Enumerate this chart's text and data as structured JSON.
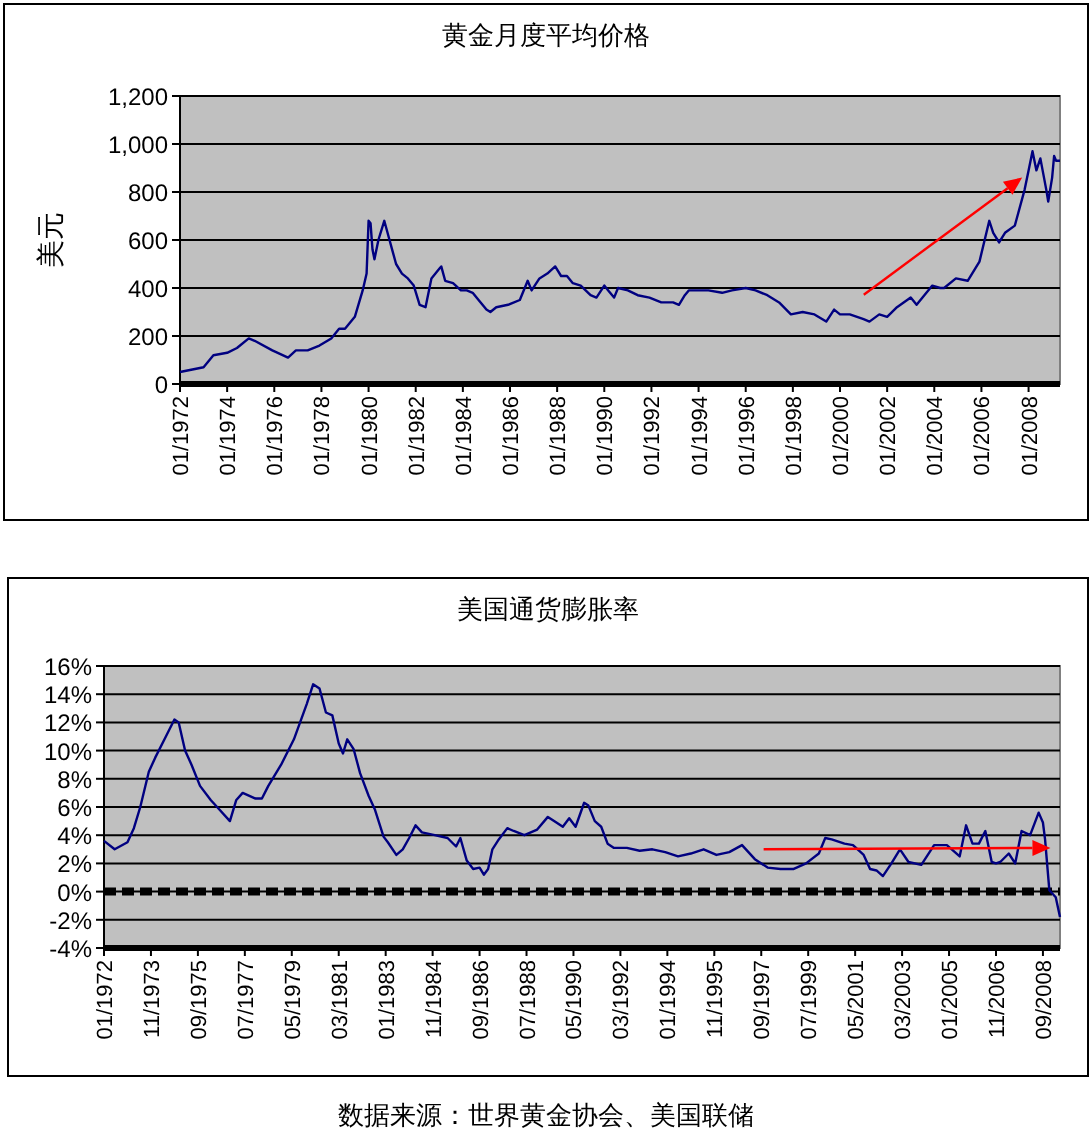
{
  "chart_data": [
    {
      "type": "line",
      "title": "黄金月度平均价格",
      "ylabel": "美元",
      "x": [
        "1972-01",
        "1973-01",
        "1973-06",
        "1974-01",
        "1974-06",
        "1974-12",
        "1975-03",
        "1975-12",
        "1976-08",
        "1976-12",
        "1977-06",
        "1977-12",
        "1978-06",
        "1978-10",
        "1979-01",
        "1979-06",
        "1979-10",
        "1979-12",
        "1980-01",
        "1980-02",
        "1980-03",
        "1980-04",
        "1980-06",
        "1980-09",
        "1980-11",
        "1981-01",
        "1981-03",
        "1981-06",
        "1981-09",
        "1981-12",
        "1982-03",
        "1982-06",
        "1982-09",
        "1983-01",
        "1983-02",
        "1983-04",
        "1983-08",
        "1983-12",
        "1984-03",
        "1984-06",
        "1984-09",
        "1985-01",
        "1985-03",
        "1985-06",
        "1985-12",
        "1986-06",
        "1986-10",
        "1986-12",
        "1987-04",
        "1987-08",
        "1987-12",
        "1988-03",
        "1988-06",
        "1988-09",
        "1989-01",
        "1989-06",
        "1989-09",
        "1990-01",
        "1990-03",
        "1990-06",
        "1990-08",
        "1991-01",
        "1991-06",
        "1991-12",
        "1992-06",
        "1992-12",
        "1993-03",
        "1993-06",
        "1993-08",
        "1993-12",
        "1994-06",
        "1995-01",
        "1995-06",
        "1996-01",
        "1996-06",
        "1996-12",
        "1997-06",
        "1997-12",
        "1998-06",
        "1998-12",
        "1999-06",
        "1999-10",
        "2000-01",
        "2000-06",
        "2001-01",
        "2001-04",
        "2001-09",
        "2002-01",
        "2002-06",
        "2003-01",
        "2003-04",
        "2003-12",
        "2004-04",
        "2004-06",
        "2004-12",
        "2005-06",
        "2005-12",
        "2006-05",
        "2006-07",
        "2006-10",
        "2007-01",
        "2007-06",
        "2007-11",
        "2008-01",
        "2008-03",
        "2008-05",
        "2008-07",
        "2008-10",
        "2008-11",
        "2009-01",
        "2009-02",
        "2009-03",
        "2009-05"
      ],
      "series": [
        {
          "color": "#000080",
          "values": [
            50,
            70,
            120,
            130,
            150,
            190,
            180,
            140,
            110,
            140,
            140,
            160,
            190,
            230,
            230,
            280,
            390,
            460,
            680,
            670,
            560,
            520,
            600,
            680,
            620,
            560,
            500,
            460,
            440,
            410,
            330,
            320,
            440,
            480,
            490,
            430,
            420,
            390,
            390,
            380,
            350,
            310,
            300,
            320,
            330,
            350,
            430,
            390,
            440,
            460,
            490,
            450,
            450,
            420,
            410,
            370,
            360,
            410,
            390,
            360,
            400,
            390,
            370,
            360,
            340,
            340,
            330,
            370,
            390,
            390,
            390,
            380,
            390,
            400,
            390,
            370,
            340,
            290,
            300,
            290,
            260,
            310,
            290,
            290,
            270,
            260,
            290,
            280,
            320,
            360,
            330,
            410,
            400,
            400,
            440,
            430,
            510,
            680,
            630,
            590,
            630,
            660,
            810,
            890,
            970,
            890,
            940,
            810,
            760,
            860,
            950,
            930,
            930
          ]
        }
      ],
      "xlim": [
        "1972-01",
        "2009-05"
      ],
      "xticks": [
        {
          "value": "1972-01",
          "label": "01/1972"
        },
        {
          "value": "1974-01",
          "label": "01/1974"
        },
        {
          "value": "1976-01",
          "label": "01/1976"
        },
        {
          "value": "1978-01",
          "label": "01/1978"
        },
        {
          "value": "1980-01",
          "label": "01/1980"
        },
        {
          "value": "1982-01",
          "label": "01/1982"
        },
        {
          "value": "1984-01",
          "label": "01/1984"
        },
        {
          "value": "1986-01",
          "label": "01/1986"
        },
        {
          "value": "1988-01",
          "label": "01/1988"
        },
        {
          "value": "1990-01",
          "label": "01/1990"
        },
        {
          "value": "1992-01",
          "label": "01/1992"
        },
        {
          "value": "1994-01",
          "label": "01/1994"
        },
        {
          "value": "1996-01",
          "label": "01/1996"
        },
        {
          "value": "1998-01",
          "label": "01/1998"
        },
        {
          "value": "2000-01",
          "label": "01/2000"
        },
        {
          "value": "2002-01",
          "label": "01/2002"
        },
        {
          "value": "2004-01",
          "label": "01/2004"
        },
        {
          "value": "2006-01",
          "label": "01/2006"
        },
        {
          "value": "2008-01",
          "label": "01/2008"
        }
      ],
      "ylim": [
        0,
        1200
      ],
      "yticks": [
        0,
        200,
        400,
        600,
        800,
        {
          "value": 1000,
          "label": "1,000"
        },
        {
          "value": 1200,
          "label": "1,200"
        }
      ],
      "grid": "y",
      "marker": "none",
      "line_style": "solid"
    },
    {
      "type": "line",
      "title": "美国通货膨胀率",
      "x": [
        "1972-01",
        "1972-06",
        "1972-12",
        "1973-03",
        "1973-06",
        "1973-10",
        "1974-01",
        "1974-06",
        "1974-10",
        "1974-12",
        "1975-03",
        "1975-06",
        "1975-10",
        "1976-03",
        "1976-06",
        "1976-12",
        "1977-03",
        "1977-06",
        "1977-12",
        "1978-03",
        "1978-06",
        "1978-12",
        "1979-06",
        "1979-12",
        "1980-03",
        "1980-06",
        "1980-09",
        "1980-12",
        "1981-03",
        "1981-05",
        "1981-07",
        "1981-10",
        "1982-01",
        "1982-05",
        "1982-08",
        "1982-12",
        "1983-02",
        "1983-06",
        "1983-09",
        "1983-12",
        "1984-03",
        "1984-06",
        "1984-12",
        "1985-06",
        "1985-10",
        "1985-12",
        "1986-03",
        "1986-06",
        "1986-09",
        "1986-11",
        "1987-01",
        "1987-03",
        "1987-06",
        "1987-10",
        "1988-01",
        "1988-06",
        "1988-12",
        "1989-05",
        "1989-09",
        "1989-12",
        "1990-03",
        "1990-06",
        "1990-10",
        "1990-12",
        "1991-03",
        "1991-06",
        "1991-09",
        "1991-12",
        "1992-06",
        "1992-12",
        "1993-06",
        "1993-12",
        "1994-06",
        "1994-12",
        "1995-06",
        "1995-12",
        "1996-06",
        "1996-12",
        "1997-06",
        "1997-12",
        "1998-06",
        "1998-12",
        "1999-06",
        "1999-12",
        "2000-03",
        "2000-06",
        "2000-12",
        "2001-04",
        "2001-09",
        "2001-12",
        "2002-03",
        "2002-06",
        "2002-10",
        "2003-02",
        "2003-06",
        "2003-12",
        "2004-06",
        "2004-12",
        "2005-06",
        "2005-09",
        "2005-12",
        "2006-03",
        "2006-06",
        "2006-09",
        "2006-11",
        "2007-01",
        "2007-05",
        "2007-08",
        "2007-11",
        "2008-03",
        "2008-07",
        "2008-09",
        "2008-10",
        "2008-12",
        "2009-03",
        "2009-05"
      ],
      "series": [
        {
          "color": "#000080",
          "values": [
            3.6,
            3.0,
            3.5,
            4.5,
            6.0,
            8.5,
            9.5,
            11.0,
            12.2,
            12.0,
            10.0,
            9.0,
            7.5,
            6.5,
            6.0,
            5.0,
            6.5,
            7.0,
            6.6,
            6.6,
            7.5,
            9.0,
            10.8,
            13.3,
            14.7,
            14.4,
            12.7,
            12.5,
            10.5,
            9.8,
            10.8,
            10.1,
            8.4,
            6.8,
            5.8,
            3.9,
            3.5,
            2.6,
            3.0,
            3.8,
            4.7,
            4.2,
            4.0,
            3.8,
            3.2,
            3.8,
            2.2,
            1.6,
            1.7,
            1.2,
            1.6,
            3.0,
            3.7,
            4.5,
            4.3,
            4.0,
            4.4,
            5.3,
            4.9,
            4.6,
            5.2,
            4.6,
            6.3,
            6.1,
            5.0,
            4.6,
            3.4,
            3.1,
            3.1,
            2.9,
            3.0,
            2.8,
            2.5,
            2.7,
            3.0,
            2.6,
            2.8,
            3.3,
            2.3,
            1.7,
            1.6,
            1.6,
            2.0,
            2.7,
            3.8,
            3.7,
            3.4,
            3.3,
            2.6,
            1.6,
            1.5,
            1.1,
            2.0,
            3.0,
            2.1,
            1.9,
            3.3,
            3.3,
            2.5,
            4.7,
            3.4,
            3.4,
            4.3,
            2.1,
            2.0,
            2.1,
            2.7,
            2.0,
            4.3,
            4.0,
            5.6,
            4.9,
            3.7,
            0.1,
            -0.4,
            -1.8
          ]
        }
      ],
      "xlim": [
        "1972-01",
        "2009-05"
      ],
      "xticks": [
        {
          "value": "1972-01",
          "label": "01/1972"
        },
        {
          "value": "1973-11",
          "label": "11/1973"
        },
        {
          "value": "1975-09",
          "label": "09/1975"
        },
        {
          "value": "1977-07",
          "label": "07/1977"
        },
        {
          "value": "1979-05",
          "label": "05/1979"
        },
        {
          "value": "1981-03",
          "label": "03/1981"
        },
        {
          "value": "1983-01",
          "label": "01/1983"
        },
        {
          "value": "1984-11",
          "label": "11/1984"
        },
        {
          "value": "1986-09",
          "label": "09/1986"
        },
        {
          "value": "1988-07",
          "label": "07/1988"
        },
        {
          "value": "1990-05",
          "label": "05/1990"
        },
        {
          "value": "1992-03",
          "label": "03/1992"
        },
        {
          "value": "1994-01",
          "label": "01/1994"
        },
        {
          "value": "1995-11",
          "label": "11/1995"
        },
        {
          "value": "1997-09",
          "label": "09/1997"
        },
        {
          "value": "1999-07",
          "label": "07/1999"
        },
        {
          "value": "2001-05",
          "label": "05/2001"
        },
        {
          "value": "2003-03",
          "label": "03/2003"
        },
        {
          "value": "2005-01",
          "label": "01/2005"
        },
        {
          "value": "2006-11",
          "label": "11/2006"
        },
        {
          "value": "2008-09",
          "label": "09/2008"
        }
      ],
      "ylim": [
        -4,
        16
      ],
      "yticks": [
        {
          "value": -4,
          "label": "-4%"
        },
        {
          "value": -2,
          "label": "-2%"
        },
        {
          "value": 0,
          "label": "0%"
        },
        {
          "value": 2,
          "label": "2%"
        },
        {
          "value": 4,
          "label": "4%"
        },
        {
          "value": 6,
          "label": "6%"
        },
        {
          "value": 8,
          "label": "8%"
        },
        {
          "value": 10,
          "label": "10%"
        },
        {
          "value": 12,
          "label": "12%"
        },
        {
          "value": 14,
          "label": "14%"
        },
        {
          "value": 16,
          "label": "16%"
        }
      ],
      "ref_lines": [
        {
          "axis": "y",
          "value": 0,
          "color": "#000000",
          "line_style": "dashed"
        }
      ],
      "annotations": [
        "数据来源：世界黄金协会、美国联储"
      ],
      "grid": "y",
      "marker": "none",
      "line_style": "solid"
    }
  ]
}
